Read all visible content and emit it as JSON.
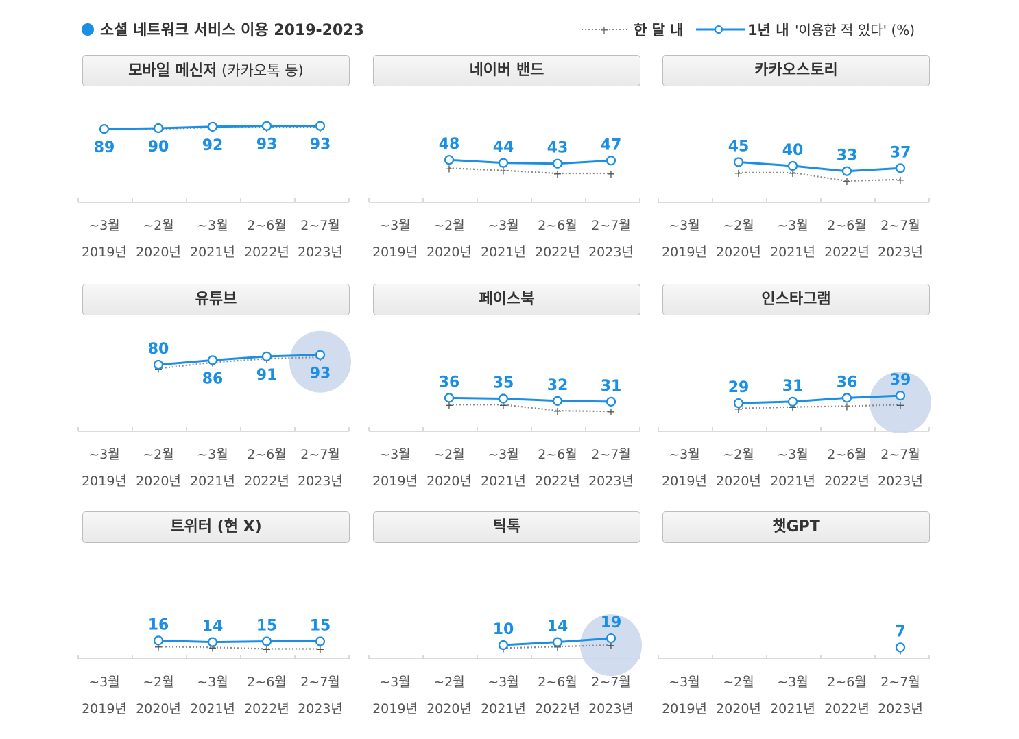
{
  "header": {
    "title": "소셜 네트워크 서비스 이용 2019-2023",
    "legend_month": "한 달 내",
    "legend_year": "1년 내",
    "legend_suffix": "'이용한 적 있다' (%)",
    "colors": {
      "year": "#1a8fe3",
      "month": "#8a8a8a",
      "dot": "#1a8fe3",
      "highlight": "#c9d6ec"
    }
  },
  "chart_data": [
    {
      "type": "line",
      "title_main": "모바일 메신저",
      "title_suffix": "(카카오톡 등)",
      "categories": [
        "~3월 2019년",
        "~2월 2020년",
        "~3월 2021년",
        "2~6월 2022년",
        "2~7월 2023년"
      ],
      "series": [
        {
          "name": "1년 내",
          "values": [
            89,
            90,
            92,
            93,
            93
          ]
        },
        {
          "name": "한 달 내",
          "values": [
            88,
            89,
            91,
            91,
            91
          ]
        }
      ],
      "ylim": [
        0,
        100
      ],
      "highlight_last": false
    },
    {
      "type": "line",
      "title_main": "네이버 밴드",
      "title_suffix": "",
      "categories": [
        "~3월 2019년",
        "~2월 2020년",
        "~3월 2021년",
        "2~6월 2022년",
        "2~7월 2023년"
      ],
      "series": [
        {
          "name": "1년 내",
          "values": [
            null,
            48,
            44,
            43,
            47
          ]
        },
        {
          "name": "한 달 내",
          "values": [
            null,
            37,
            34,
            30,
            30
          ]
        }
      ],
      "ylim": [
        0,
        100
      ],
      "highlight_last": false
    },
    {
      "type": "line",
      "title_main": "카카오스토리",
      "title_suffix": "",
      "categories": [
        "~3월 2019년",
        "~2월 2020년",
        "~3월 2021년",
        "2~6월 2022년",
        "2~7월 2023년"
      ],
      "series": [
        {
          "name": "1년 내",
          "values": [
            null,
            45,
            40,
            33,
            37
          ]
        },
        {
          "name": "한 달 내",
          "values": [
            null,
            31,
            31,
            20,
            22
          ]
        }
      ],
      "ylim": [
        0,
        100
      ],
      "highlight_last": false
    },
    {
      "type": "line",
      "title_main": "유튜브",
      "title_suffix": "",
      "categories": [
        "~3월 2019년",
        "~2월 2020년",
        "~3월 2021년",
        "2~6월 2022년",
        "2~7월 2023년"
      ],
      "series": [
        {
          "name": "1년 내",
          "values": [
            null,
            80,
            86,
            91,
            93
          ]
        },
        {
          "name": "한 달 내",
          "values": [
            null,
            75,
            83,
            88,
            90
          ]
        }
      ],
      "ylim": [
        0,
        100
      ],
      "highlight_last": true
    },
    {
      "type": "line",
      "title_main": "페이스북",
      "title_suffix": "",
      "categories": [
        "~3월 2019년",
        "~2월 2020년",
        "~3월 2021년",
        "2~6월 2022년",
        "2~7월 2023년"
      ],
      "series": [
        {
          "name": "1년 내",
          "values": [
            null,
            36,
            35,
            32,
            31
          ]
        },
        {
          "name": "한 달 내",
          "values": [
            null,
            27,
            27,
            19,
            18
          ]
        }
      ],
      "ylim": [
        0,
        100
      ],
      "highlight_last": false
    },
    {
      "type": "line",
      "title_main": "인스타그램",
      "title_suffix": "",
      "categories": [
        "~3월 2019년",
        "~2월 2020년",
        "~3월 2021년",
        "2~6월 2022년",
        "2~7월 2023년"
      ],
      "series": [
        {
          "name": "1년 내",
          "values": [
            null,
            29,
            31,
            36,
            39
          ]
        },
        {
          "name": "한 달 내",
          "values": [
            null,
            22,
            24,
            25,
            27
          ]
        }
      ],
      "ylim": [
        0,
        100
      ],
      "highlight_last": true
    },
    {
      "type": "line",
      "title_main": "트위터 (현 X)",
      "title_suffix": "",
      "categories": [
        "~3월 2019년",
        "~2월 2020년",
        "~3월 2021년",
        "2~6월 2022년",
        "2~7월 2023년"
      ],
      "series": [
        {
          "name": "1년 내",
          "values": [
            null,
            16,
            14,
            15,
            15
          ]
        },
        {
          "name": "한 달 내",
          "values": [
            null,
            8,
            7,
            5,
            5
          ]
        }
      ],
      "ylim": [
        0,
        100
      ],
      "highlight_last": false
    },
    {
      "type": "line",
      "title_main": "틱톡",
      "title_suffix": "",
      "categories": [
        "~3월 2019년",
        "~2월 2020년",
        "~3월 2021년",
        "2~6월 2022년",
        "2~7월 2023년"
      ],
      "series": [
        {
          "name": "1년 내",
          "values": [
            null,
            null,
            10,
            14,
            19
          ]
        },
        {
          "name": "한 달 내",
          "values": [
            null,
            null,
            6,
            8,
            10
          ]
        }
      ],
      "ylim": [
        0,
        100
      ],
      "highlight_last": true
    },
    {
      "type": "line",
      "title_main": "챗GPT",
      "title_suffix": "",
      "categories": [
        "~3월 2019년",
        "~2월 2020년",
        "~3월 2021년",
        "2~6월 2022년",
        "2~7월 2023년"
      ],
      "series": [
        {
          "name": "1년 내",
          "values": [
            null,
            null,
            null,
            null,
            7
          ]
        },
        {
          "name": "한 달 내",
          "values": [
            null,
            null,
            null,
            null,
            3
          ]
        }
      ],
      "ylim": [
        0,
        100
      ],
      "highlight_last": false
    }
  ],
  "axis": {
    "x_top": [
      "~3월",
      "~2월",
      "~3월",
      "2~6월",
      "2~7월"
    ],
    "x_bottom": [
      "2019년",
      "2020년",
      "2021년",
      "2022년",
      "2023년"
    ]
  }
}
